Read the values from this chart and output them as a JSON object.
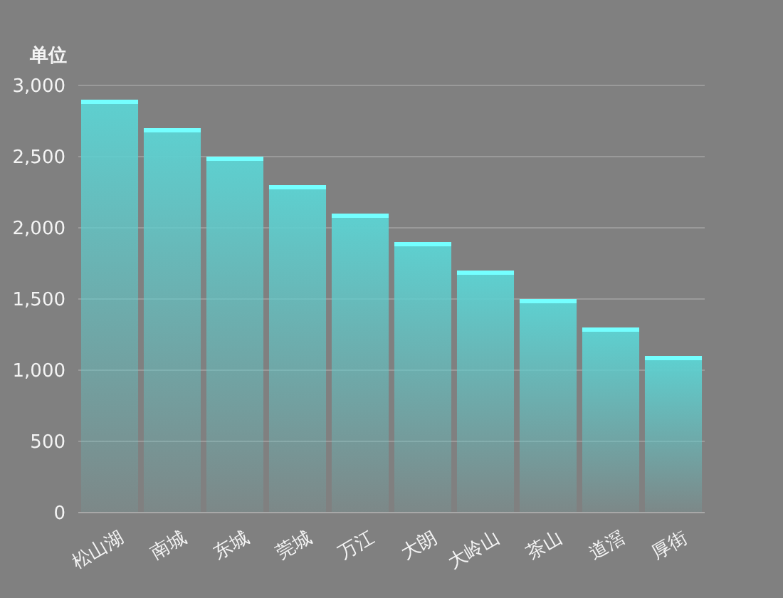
{
  "chart_data": {
    "type": "bar",
    "ylabel": "单位",
    "categories": [
      "松山湖",
      "南城",
      "东城",
      "莞城",
      "万江",
      "大朗",
      "大岭山",
      "茶山",
      "道滘",
      "厚街"
    ],
    "values": [
      2900,
      2700,
      2500,
      2300,
      2100,
      1900,
      1700,
      1500,
      1300,
      1100
    ],
    "color": "#5ecfcf",
    "ylim": [
      0,
      3000
    ],
    "yticks": [
      0,
      500,
      {
        "value": 1000,
        "label": "1,000"
      },
      {
        "value": 1500,
        "label": "1,500"
      },
      {
        "value": 2000,
        "label": "2,000"
      },
      {
        "value": 2500,
        "label": "2,500"
      },
      {
        "value": 3000,
        "label": "3,000"
      }
    ],
    "grid": "y"
  }
}
